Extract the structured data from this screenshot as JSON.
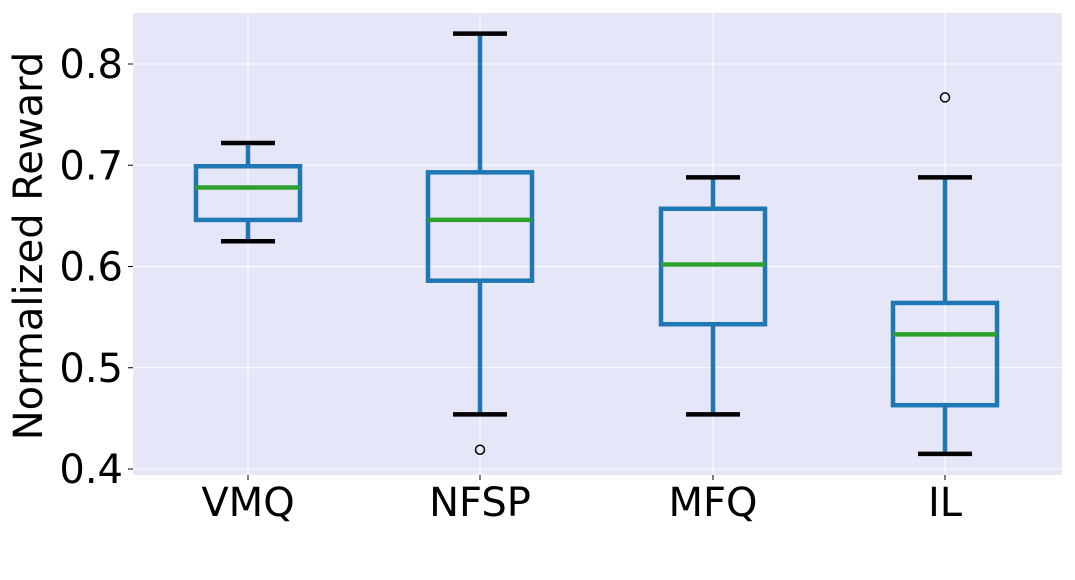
{
  "chart_data": {
    "type": "box",
    "title": "",
    "xlabel": "",
    "ylabel": "Normalized Reward",
    "ylim": [
      0.395,
      0.85
    ],
    "yticks": [
      0.4,
      0.5,
      0.6,
      0.7,
      0.8
    ],
    "ytick_labels": [
      "0.4",
      "0.5",
      "0.6",
      "0.7",
      "0.8"
    ],
    "grid": true,
    "categories": [
      "VMQ",
      "NFSP",
      "MFQ",
      "IL"
    ],
    "boxes": [
      {
        "name": "VMQ",
        "whisker_low": 0.625,
        "q1": 0.646,
        "median": 0.678,
        "q3": 0.699,
        "whisker_high": 0.722,
        "outliers": []
      },
      {
        "name": "NFSP",
        "whisker_low": 0.454,
        "q1": 0.586,
        "median": 0.646,
        "q3": 0.693,
        "whisker_high": 0.83,
        "outliers": [
          0.419
        ]
      },
      {
        "name": "MFQ",
        "whisker_low": 0.454,
        "q1": 0.543,
        "median": 0.602,
        "q3": 0.657,
        "whisker_high": 0.688,
        "outliers": []
      },
      {
        "name": "IL",
        "whisker_low": 0.415,
        "q1": 0.463,
        "median": 0.533,
        "q3": 0.564,
        "whisker_high": 0.688,
        "outliers": [
          0.767
        ]
      }
    ],
    "colors": {
      "background": "#e5e6f8",
      "grid": "#ffffff",
      "box": "#1f77b4",
      "median": "#2ca02c",
      "whisker_cap": "#000000",
      "outlier": "#000000"
    }
  }
}
